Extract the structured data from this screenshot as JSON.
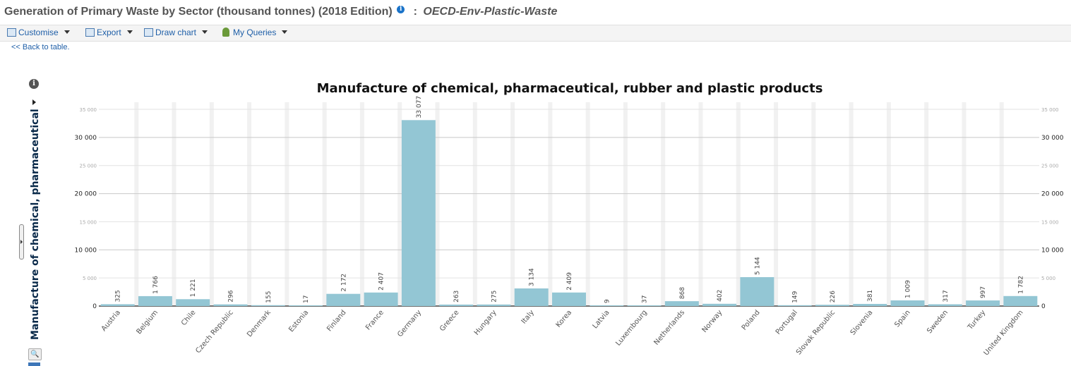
{
  "header": {
    "title": "Generation of Primary Waste by Sector (thousand tonnes) (2018 Edition)",
    "separator": ":",
    "dataset": "OECD-Env-Plastic-Waste"
  },
  "toolbar": {
    "customise": "Customise",
    "export": "Export",
    "draw_chart": "Draw chart",
    "my_queries": "My Queries"
  },
  "nav": {
    "back": "<< Back to table."
  },
  "colors": {
    "bar": "#93c6d4",
    "link": "#1f5fa8",
    "gridline": "#c8c8c8"
  },
  "chart_data": {
    "type": "bar",
    "title": "Manufacture of chemical, pharmaceutical, rubber and plastic products",
    "ylabel": "Manufacture of chemical, pharmaceutical",
    "ylim": [
      0,
      35000
    ],
    "major_ticks": [
      "0",
      "5 000",
      "10 000",
      "15 000",
      "20 000",
      "25 000",
      "30 000",
      "35 000"
    ],
    "grid": true,
    "categories": [
      "Austria",
      "Belgium",
      "Chile",
      "Czech Republic",
      "Denmark",
      "Estonia",
      "Finland",
      "France",
      "Germany",
      "Greece",
      "Hungary",
      "Italy",
      "Korea",
      "Latvia",
      "Luxembourg",
      "Netherlands",
      "Norway",
      "Poland",
      "Portugal",
      "Slovak Republic",
      "Slovenia",
      "Spain",
      "Sweden",
      "Turkey",
      "United Kingdom"
    ],
    "values": [
      325,
      1766,
      1221,
      296,
      155,
      17,
      2172,
      2407,
      33077,
      263,
      275,
      3134,
      2409,
      9,
      37,
      868,
      402,
      5144,
      149,
      226,
      381,
      1009,
      317,
      997,
      1782
    ],
    "value_labels": [
      "325",
      "1 766",
      "1 221",
      "296",
      "155",
      "17",
      "2 172",
      "2 407",
      "33 077",
      "263",
      "275",
      "3 134",
      "2 409",
      "9",
      "37",
      "868",
      "402",
      "5 144",
      "149",
      "226",
      "381",
      "1 009",
      "317",
      "997",
      "1 782"
    ]
  }
}
